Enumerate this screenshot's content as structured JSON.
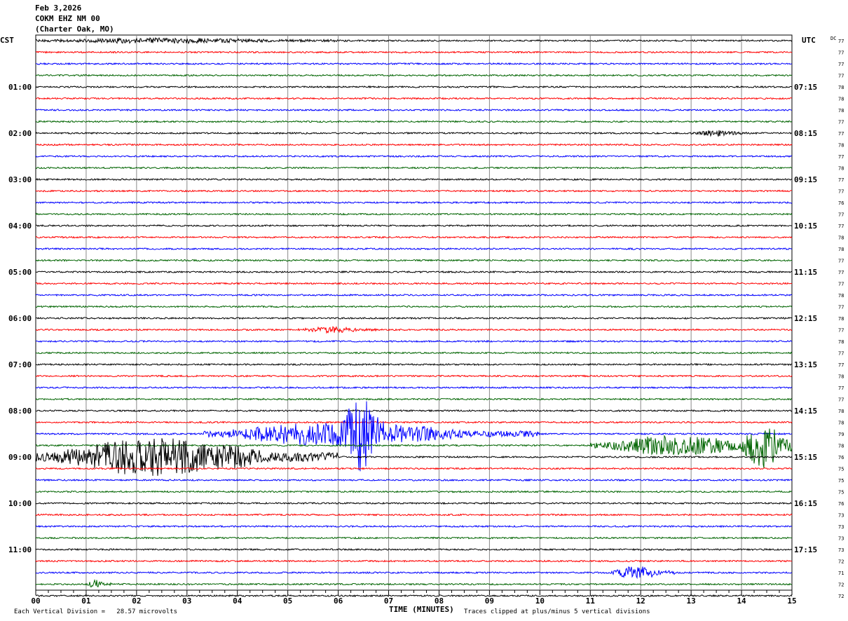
{
  "header": {
    "date": "Feb 3,2026",
    "station": "COKM EHZ NM 00",
    "location": "(Charter Oak, MO)"
  },
  "chart_data": {
    "type": "line",
    "title": "",
    "xlabel": "TIME (MINUTES)",
    "left_timezone": "CST",
    "right_timezone": "UTC",
    "dc_label": "DC",
    "xlim": [
      0,
      15
    ],
    "x_ticks": [
      "00",
      "01",
      "02",
      "03",
      "04",
      "05",
      "06",
      "07",
      "08",
      "09",
      "10",
      "11",
      "12",
      "13",
      "14",
      "15"
    ],
    "left_hour_labels": [
      "01:00",
      "02:00",
      "03:00",
      "04:00",
      "05:00",
      "06:00",
      "07:00",
      "08:00",
      "09:00",
      "10:00",
      "11:00"
    ],
    "right_hour_labels": [
      "07:15",
      "08:15",
      "09:15",
      "10:15",
      "11:15",
      "12:15",
      "13:15",
      "14:15",
      "15:15",
      "16:15",
      "17:15"
    ],
    "trace_colors": [
      "#000000",
      "#ff0000",
      "#0000ff",
      "#006400"
    ],
    "dc_values": [
      77,
      77,
      77,
      77,
      78,
      78,
      78,
      77,
      77,
      78,
      77,
      78,
      77,
      77,
      76,
      77,
      77,
      78,
      78,
      77,
      77,
      77,
      78,
      77,
      78,
      77,
      78,
      77,
      77,
      78,
      77,
      77,
      78,
      78,
      79,
      78,
      76,
      75,
      75,
      75,
      76,
      73,
      73,
      73,
      73,
      72,
      71,
      72,
      72
    ],
    "events": [
      {
        "trace": 0,
        "start_min": 0.0,
        "end_min": 6.2,
        "amplitude": 0.35
      },
      {
        "trace": 8,
        "start_min": 13.0,
        "end_min": 14.2,
        "amplitude": 0.45
      },
      {
        "trace": 25,
        "start_min": 5.2,
        "end_min": 6.8,
        "amplitude": 0.4
      },
      {
        "trace": 34,
        "start_min": 3.3,
        "end_min": 10.0,
        "amplitude": 2.0
      },
      {
        "trace": 34,
        "start_min": 6.1,
        "end_min": 6.9,
        "amplitude": 4.5
      },
      {
        "trace": 35,
        "start_min": 11.0,
        "end_min": 15.0,
        "amplitude": 1.6
      },
      {
        "trace": 35,
        "start_min": 14.0,
        "end_min": 15.0,
        "amplitude": 3.8
      },
      {
        "trace": 36,
        "start_min": 0.0,
        "end_min": 6.0,
        "amplitude": 3.2
      },
      {
        "trace": 46,
        "start_min": 11.4,
        "end_min": 12.7,
        "amplitude": 1.0
      },
      {
        "trace": 47,
        "start_min": 1.0,
        "end_min": 1.5,
        "amplitude": 0.6
      }
    ]
  },
  "footer": {
    "vertical_division": "Each Vertical Division =   28.57 microvolts",
    "clipping_note": "Traces clipped at plus/minus 5 vertical divisions"
  }
}
